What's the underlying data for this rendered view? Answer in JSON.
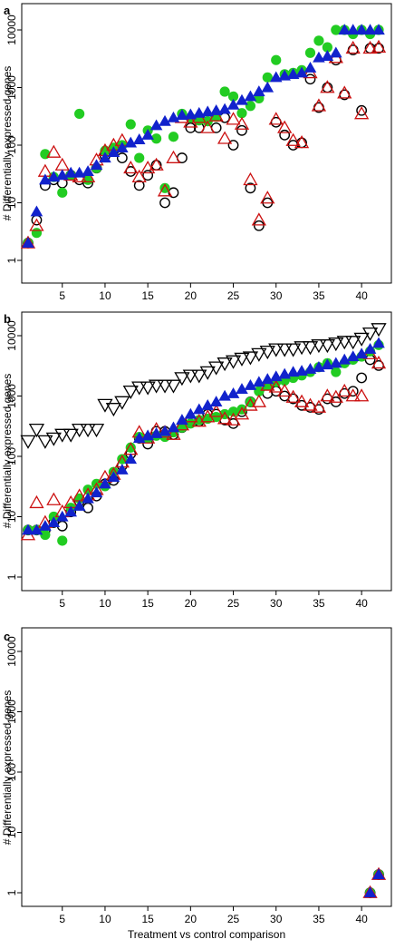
{
  "figure": {
    "ylabel": "# Differentially expressed genes",
    "xlabel": "Treatment vs control comparison"
  },
  "colors": {
    "open_circle": "#000000",
    "green_dot": "#22cc22",
    "red_triangle": "#cc1111",
    "blue_triangle": "#1122cc",
    "down_triangle": "#000000"
  },
  "chart_data": [
    {
      "panel": "a",
      "type": "scatter",
      "y_scale": "log",
      "ylim": [
        1,
        10000
      ],
      "xlim": [
        1,
        42
      ],
      "x_ticks": [
        "5",
        "10",
        "15",
        "20",
        "25",
        "30",
        "35",
        "40"
      ],
      "y_ticks": [
        "1",
        "10",
        "100",
        "1000",
        "10000"
      ],
      "series": [
        {
          "marker": "open-circle",
          "values": [
            2,
            5,
            20,
            25,
            22,
            30,
            25,
            22,
            40,
            65,
            80,
            60,
            35,
            20,
            30,
            45,
            10,
            15,
            60,
            200,
            200,
            280,
            200,
            300,
            100,
            180,
            18,
            4,
            10,
            250,
            150,
            100,
            110,
            1400,
            450,
            1000,
            3000,
            750,
            4500,
            400,
            4800,
            4800
          ]
        },
        {
          "marker": "green-dot",
          "values": [
            2,
            3,
            70,
            28,
            15,
            30,
            350,
            25,
            40,
            80,
            90,
            100,
            230,
            60,
            180,
            130,
            18,
            140,
            350,
            300,
            270,
            260,
            310,
            850,
            700,
            360,
            480,
            650,
            1500,
            3000,
            1700,
            1800,
            2000,
            4000,
            6500,
            5000,
            10000,
            10000,
            8500,
            10000,
            8500,
            10000
          ]
        },
        {
          "marker": "red-triangle",
          "values": [
            2,
            4,
            35,
            75,
            45,
            30,
            28,
            28,
            55,
            80,
            100,
            120,
            40,
            28,
            40,
            45,
            16,
            60,
            300,
            250,
            300,
            200,
            320,
            130,
            280,
            230,
            25,
            5,
            12,
            280,
            200,
            120,
            110,
            1800,
            480,
            1000,
            3300,
            800,
            4800,
            350,
            4800,
            5000
          ]
        },
        {
          "marker": "blue-triangle",
          "values": [
            2,
            7,
            25,
            28,
            30,
            33,
            33,
            35,
            45,
            60,
            75,
            90,
            110,
            125,
            150,
            220,
            260,
            300,
            330,
            340,
            360,
            380,
            400,
            420,
            500,
            600,
            700,
            850,
            1000,
            1500,
            1600,
            1700,
            1800,
            2200,
            3300,
            3500,
            4000,
            10000,
            10000,
            10000,
            10000,
            10000
          ]
        }
      ]
    },
    {
      "panel": "b",
      "type": "scatter",
      "y_scale": "log",
      "ylim": [
        1,
        10000
      ],
      "xlim": [
        1,
        42
      ],
      "x_ticks": [
        "5",
        "10",
        "15",
        "20",
        "25",
        "30",
        "35",
        "40"
      ],
      "y_ticks": [
        "1",
        "10",
        "100",
        "1000",
        "10000"
      ],
      "series": [
        {
          "marker": "down-triangle",
          "values": [
            180,
            280,
            180,
            200,
            230,
            230,
            280,
            280,
            280,
            720,
            620,
            800,
            1200,
            1400,
            1400,
            1500,
            1500,
            1500,
            2000,
            2200,
            2200,
            2500,
            3000,
            3500,
            3800,
            4200,
            4400,
            5000,
            5500,
            6000,
            6000,
            6000,
            6500,
            6500,
            7000,
            7000,
            7500,
            8000,
            8000,
            9000,
            11000,
            13000
          ]
        },
        {
          "marker": "open-circle",
          "values": [
            6,
            6,
            6,
            8,
            7,
            12,
            18,
            14,
            22,
            35,
            40,
            70,
            110,
            200,
            160,
            260,
            260,
            230,
            300,
            400,
            380,
            500,
            500,
            400,
            350,
            550,
            800,
            1400,
            1100,
            1200,
            1000,
            900,
            700,
            650,
            600,
            900,
            800,
            1100,
            1200,
            2000,
            4000,
            3200
          ]
        },
        {
          "marker": "green-dot",
          "values": [
            6,
            6,
            5,
            10,
            4,
            14,
            20,
            28,
            35,
            32,
            55,
            90,
            140,
            210,
            200,
            220,
            210,
            250,
            300,
            350,
            400,
            420,
            450,
            500,
            550,
            600,
            800,
            1200,
            1500,
            1700,
            1800,
            2000,
            2200,
            2500,
            3000,
            3500,
            2500,
            3500,
            4000,
            4500,
            5500,
            7000
          ]
        },
        {
          "marker": "red-triangle",
          "values": [
            5,
            17,
            8,
            19,
            12,
            17,
            22,
            23,
            28,
            45,
            50,
            80,
            130,
            250,
            200,
            280,
            250,
            230,
            330,
            450,
            380,
            450,
            550,
            420,
            400,
            500,
            700,
            800,
            1500,
            1400,
            1200,
            950,
            800,
            700,
            650,
            1000,
            950,
            1200,
            1000,
            1000,
            5000,
            3500
          ]
        },
        {
          "marker": "blue-triangle",
          "values": [
            6,
            6,
            7,
            8,
            10,
            12,
            15,
            20,
            25,
            35,
            45,
            60,
            90,
            200,
            220,
            240,
            260,
            300,
            400,
            500,
            600,
            700,
            800,
            1000,
            1100,
            1300,
            1500,
            1700,
            1900,
            2100,
            2300,
            2500,
            2600,
            2800,
            3000,
            3300,
            3500,
            4000,
            4500,
            5000,
            6000,
            7500
          ]
        }
      ]
    },
    {
      "panel": "c",
      "type": "scatter",
      "y_scale": "log",
      "ylim": [
        1,
        10000
      ],
      "xlim": [
        1,
        42
      ],
      "x_ticks": [
        "5",
        "10",
        "15",
        "20",
        "25",
        "30",
        "35",
        "40"
      ],
      "y_ticks": [
        "1",
        "10",
        "100",
        "1000",
        "10000"
      ],
      "series": [
        {
          "marker": "open-circle",
          "x": [
            41,
            42
          ],
          "values": [
            1,
            2
          ]
        },
        {
          "marker": "green-dot",
          "x": [
            41,
            42
          ],
          "values": [
            1,
            2
          ]
        },
        {
          "marker": "red-triangle",
          "x": [
            41,
            42
          ],
          "values": [
            1,
            2
          ]
        },
        {
          "marker": "blue-triangle",
          "x": [
            41,
            42
          ],
          "values": [
            1,
            2
          ]
        }
      ]
    }
  ]
}
